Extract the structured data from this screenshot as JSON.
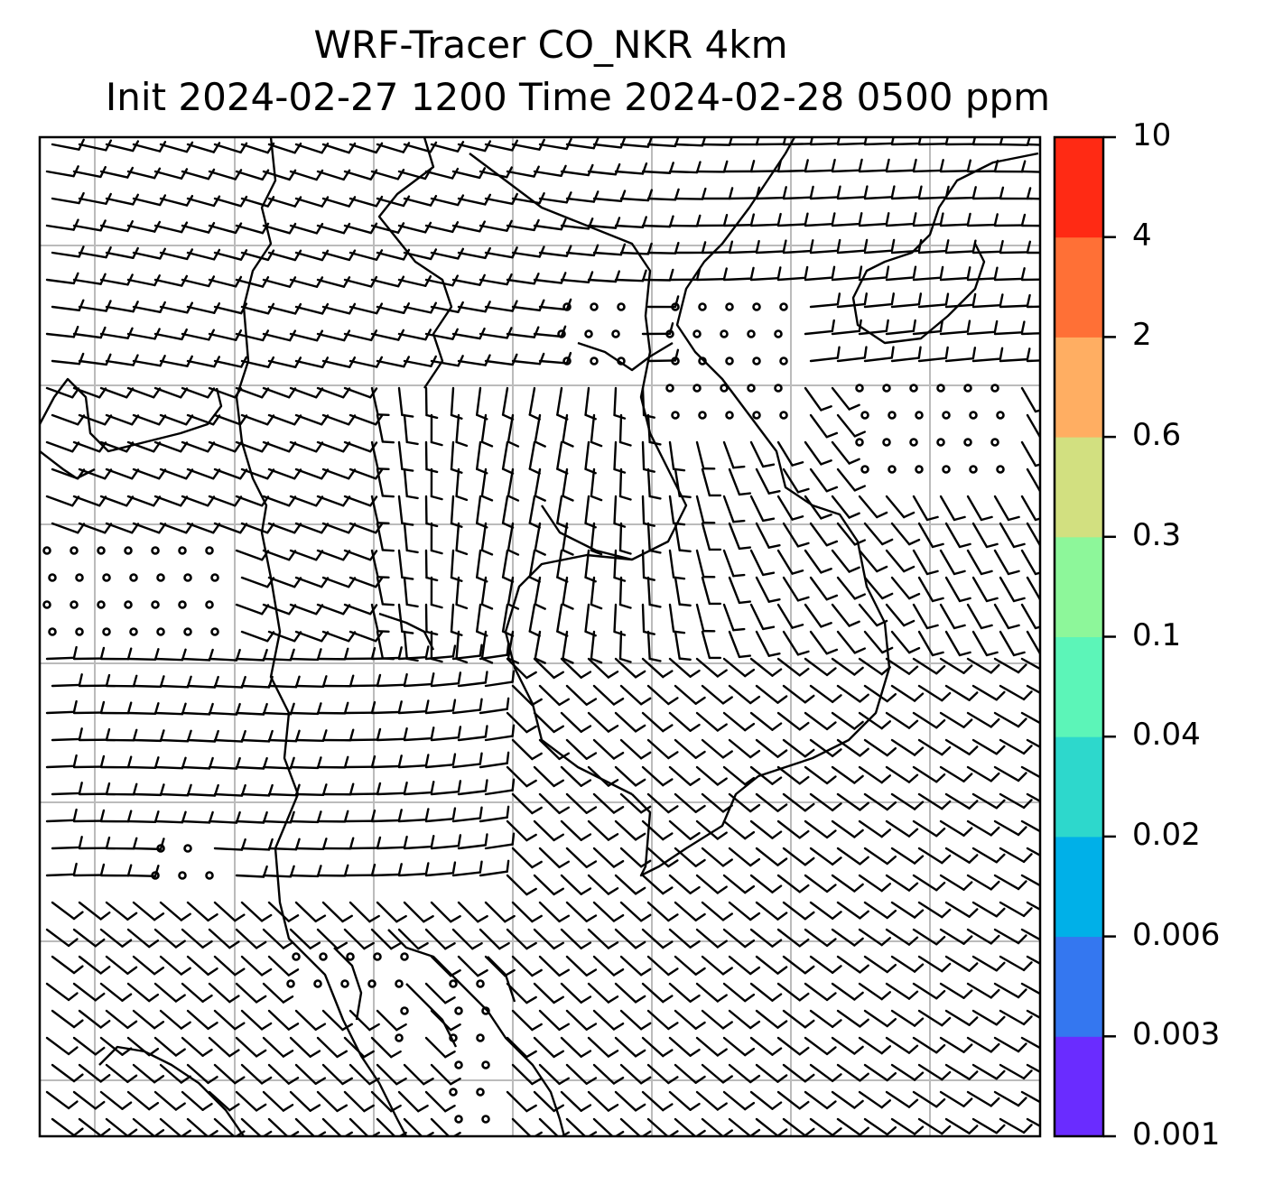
{
  "title": {
    "line1": "WRF-Tracer CO_NKR 4km",
    "line2": "Init 2024-02-27 1200 Time 2024-02-28 0500 ppm"
  },
  "colorbar": {
    "levels": [
      "0.001",
      "0.003",
      "0.006",
      "0.02",
      "0.04",
      "0.1",
      "0.3",
      "0.6",
      "2",
      "4",
      "10"
    ],
    "colors": [
      "#6a2cff",
      "#3477f0",
      "#00b0e8",
      "#2dd8cc",
      "#5cf5b8",
      "#8df79a",
      "#d2e080",
      "#ffae62",
      "#ff7036",
      "#ff2a14"
    ]
  },
  "map": {
    "gridlines": "on",
    "wind_barbs": "on",
    "coastlines": "on"
  }
}
